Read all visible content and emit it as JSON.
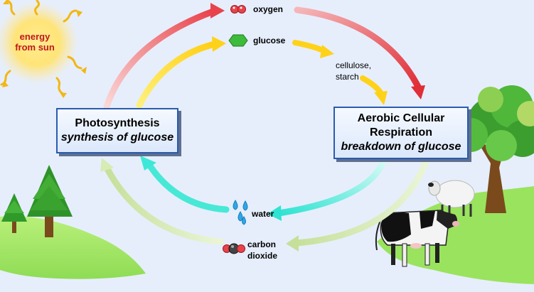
{
  "sun": {
    "label_line1": "energy",
    "label_line2": "from sun"
  },
  "photosynthesis": {
    "title": "Photosynthesis",
    "subtitle": "synthesis of glucose"
  },
  "respiration": {
    "title_line1": "Aerobic Cellular",
    "title_line2": "Respiration",
    "subtitle": "breakdown of glucose"
  },
  "molecules": {
    "oxygen": "oxygen",
    "glucose": "glucose",
    "cellulose_line1": "cellulose,",
    "cellulose_line2": "starch",
    "water": "water",
    "co2_line1": "carbon",
    "co2_line2": "dioxide"
  },
  "colors": {
    "oxygen_arrow": "#e8434a",
    "glucose_arrow": "#ffd21a",
    "water_arrow": "#3ee8d8",
    "co2_arrow": "#c9e39a",
    "box_border": "#2a5bb0",
    "sun_text": "#c0171b"
  }
}
